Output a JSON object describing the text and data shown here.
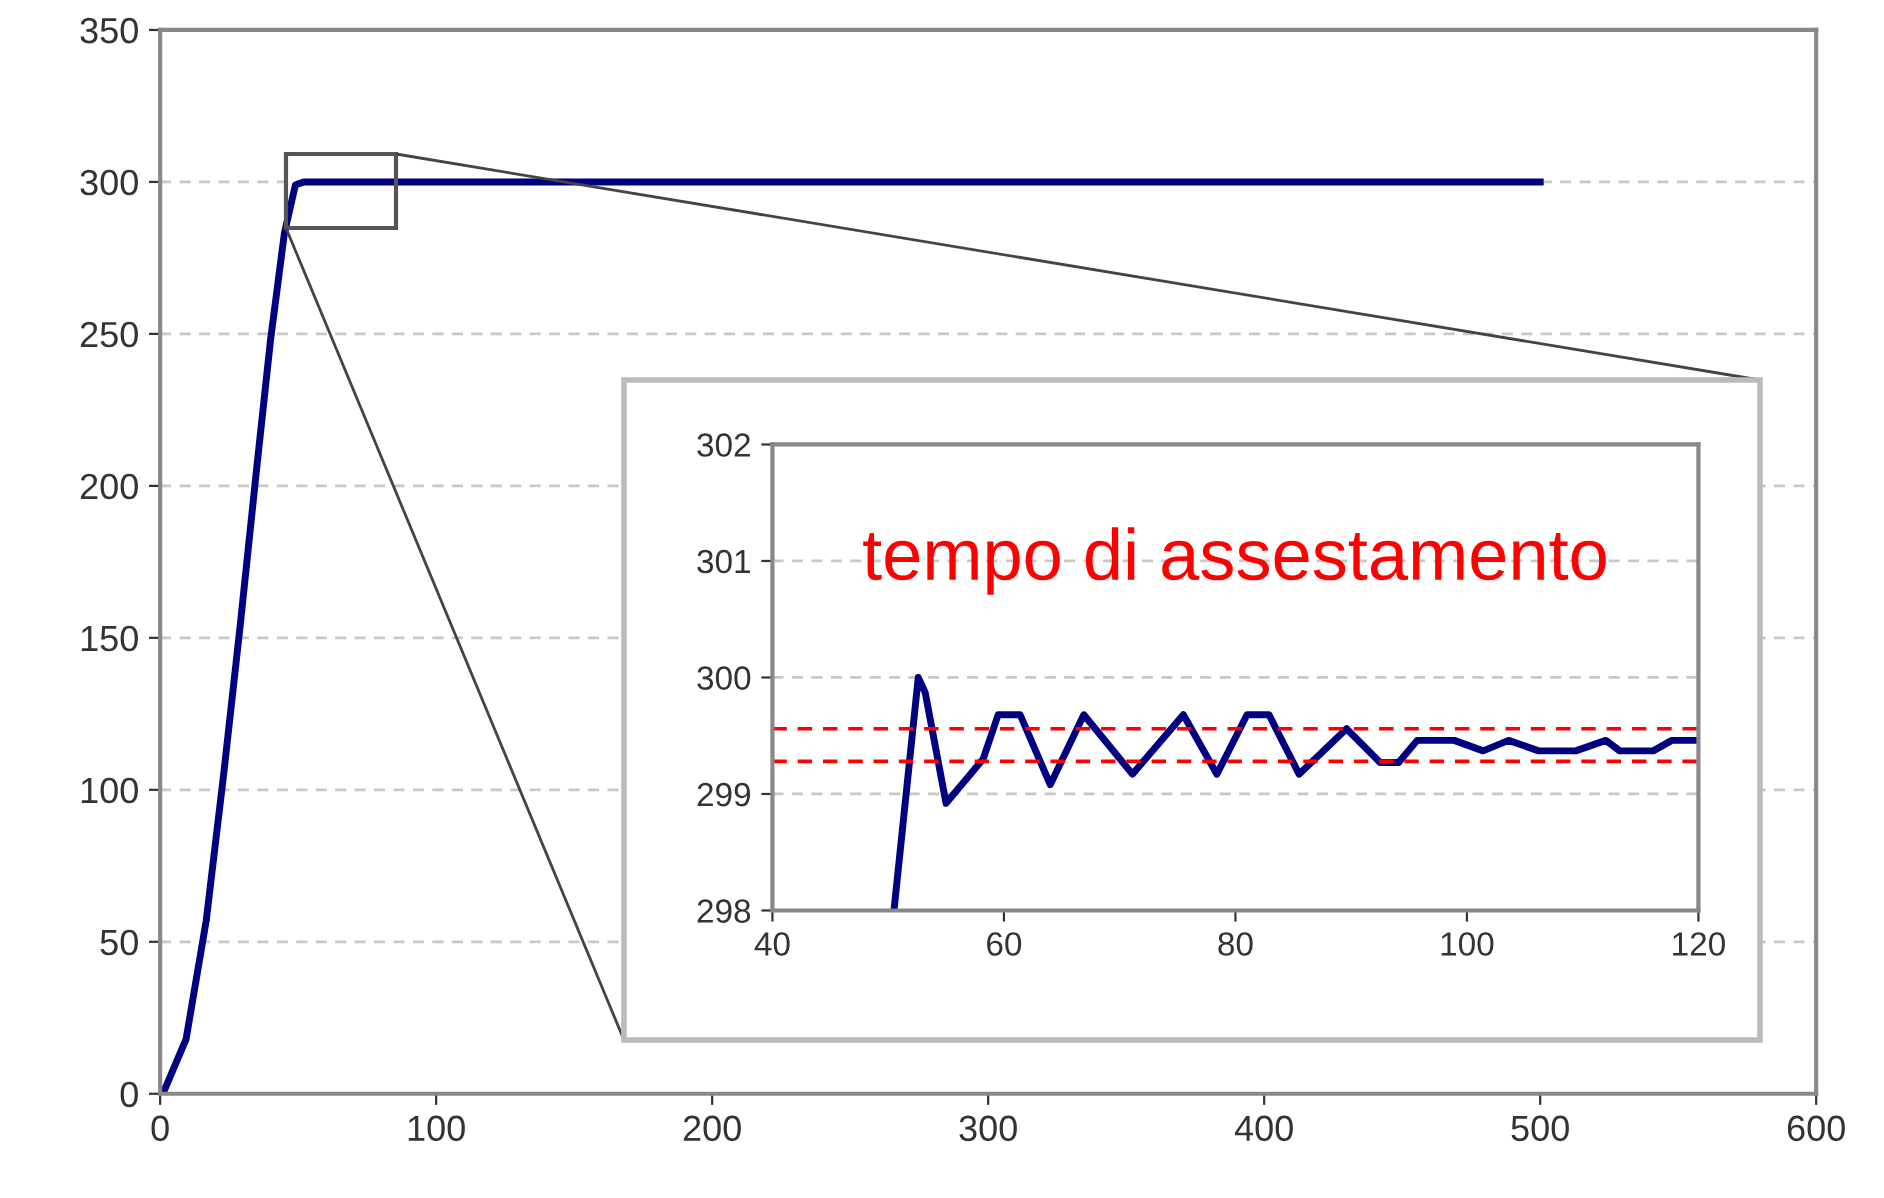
{
  "chart_data": [
    {
      "type": "line",
      "x": [
        1,
        9.4,
        16.7,
        23,
        29,
        35,
        40,
        45,
        49,
        52,
        500
      ],
      "series": [
        {
          "color": "#000080",
          "values": [
            0,
            18,
            57,
            105,
            154,
            206,
            248,
            283,
            299,
            300,
            300
          ]
        }
      ],
      "xlim": [
        0,
        600
      ],
      "xticks": [
        0,
        100,
        200,
        300,
        400,
        500,
        600
      ],
      "ylim": [
        0,
        350
      ],
      "yticks": [
        0,
        50,
        100,
        150,
        200,
        250,
        300,
        350
      ],
      "grid": "y",
      "legend": false
    },
    {
      "type": "line",
      "x": [
        50.5,
        52.6,
        53.2,
        55.0,
        58.2,
        59.5,
        61.4,
        64,
        66.9,
        71.1,
        75.5,
        78.4,
        81,
        82.9,
        85.5,
        89.6,
        92.5,
        94.1,
        95.7,
        98.9,
        101.4,
        103.6,
        106.2,
        109.4,
        112,
        113.2,
        116.1,
        117.7,
        120
      ],
      "series": [
        {
          "color": "#000080",
          "values": [
            298,
            300,
            299.87,
            298.92,
            299.3,
            299.68,
            299.68,
            299.08,
            299.68,
            299.17,
            299.68,
            299.17,
            299.68,
            299.68,
            299.17,
            299.56,
            299.27,
            299.27,
            299.46,
            299.46,
            299.37,
            299.46,
            299.37,
            299.37,
            299.46,
            299.37,
            299.37,
            299.46,
            299.46
          ]
        }
      ],
      "xlim": [
        40,
        120
      ],
      "xticks": [
        40,
        60,
        80,
        100,
        120
      ],
      "ylim": [
        298,
        302
      ],
      "yticks": [
        298,
        299,
        300,
        301,
        302
      ],
      "grid": "y",
      "legend": false,
      "ref_lines": [
        {
          "axis": "y",
          "value": 299.56,
          "color": "#ff0000",
          "line_style": "dashed"
        },
        {
          "axis": "y",
          "value": 299.28,
          "color": "#ff0000",
          "line_style": "dashed"
        }
      ],
      "annotations": [
        "tempo di assestamento"
      ]
    }
  ]
}
